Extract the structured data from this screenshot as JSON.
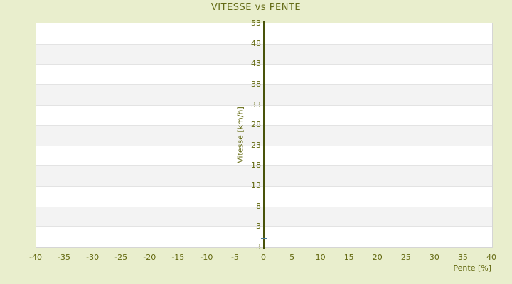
{
  "chart_title": "VITESSE vs PENTE",
  "chart_data": {
    "type": "scatter",
    "title": "VITESSE vs PENTE",
    "xlabel": "Pente [%]",
    "ylabel": "Vitesse [km/h]",
    "xlim": [
      -40,
      40
    ],
    "ylim": [
      -2,
      53
    ],
    "x_ticks": [
      -40,
      -35,
      -30,
      -25,
      -20,
      -15,
      -10,
      -5,
      0,
      5,
      10,
      15,
      20,
      25,
      30,
      35,
      40
    ],
    "y_ticks": [
      53,
      48,
      43,
      38,
      33,
      28,
      23,
      18,
      13,
      8,
      3
    ],
    "y_axis_bottom_edge_label": "3",
    "points": [
      {
        "x": 0,
        "y": 0
      }
    ],
    "marker_shape": "cross",
    "legend": "none",
    "grid": "alternating horizontal bands aligned to y ticks, y-axis drawn at x=0"
  },
  "colors": {
    "page_background": "#e9eecd",
    "title_text": "#646b16",
    "tick_text": "#62680f",
    "axis_line": "#49530a",
    "band_gray": "#f3f3f3",
    "band_white": "#ffffff",
    "grid_line": "#e3e3e3",
    "plot_border": "#d5d5d5",
    "marker": "#4e7d99"
  }
}
